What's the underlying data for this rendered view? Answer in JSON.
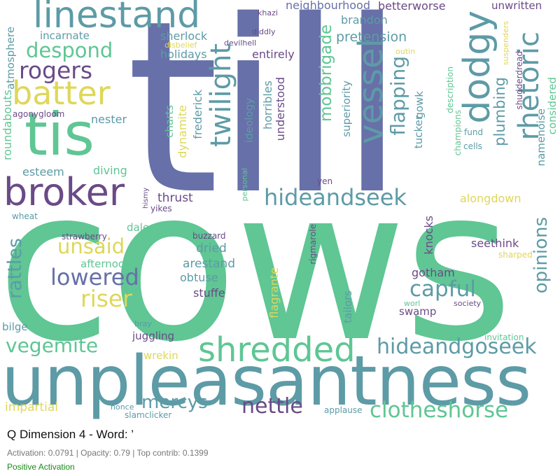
{
  "title": "Q Dimension 4 - Word: ’",
  "meta": "Activation: 0.0791 | Opacity: 0.79 | Top contrib: 0.1399",
  "polarity": "Positive Activation",
  "colors": {
    "c1": "#6770a8",
    "c2": "#5d9ba6",
    "c3": "#5fc694",
    "c4": "#ded75a",
    "c5": "#6a4a87"
  },
  "words": [
    "till",
    "cows",
    "unpleasantness",
    "tis",
    "broker",
    "linestand",
    "batter",
    "despond",
    "rogers",
    "incarnate",
    "atmosphere",
    "agonygloom",
    "roundabouts",
    "esteem",
    "rattles",
    "wheat",
    "vegemite",
    "bilge",
    "impartial",
    "unsaid",
    "lowered",
    "riser",
    "afternoon",
    "strawberry",
    "dale",
    "mercys",
    "juggling",
    "wrekin",
    "nonce",
    "slamclicker",
    "bray",
    "diving",
    "thrust",
    "hismy",
    "yikes",
    "charts",
    "dynamite",
    "nester",
    "frederick",
    "holidays",
    "sherlock",
    "disbelief",
    "devilhell",
    "diddly",
    "khazi",
    "twilight",
    "personal",
    "ideology",
    "entirely",
    "horribles",
    "understood",
    "mobbrigade",
    "neighbourhood",
    "pretension",
    "brandon",
    "superiority",
    "vessel",
    "flapping",
    "gowk",
    "tucker",
    "dodgy",
    "plumbing",
    "betterworse",
    "unwritten",
    "rhetoric",
    "description",
    "champions",
    "outin",
    "shudderdread",
    "suspenders",
    "considered",
    "namenoise",
    "fund",
    "cells",
    "yen",
    "hideandseek",
    "alongdown",
    "knocks",
    "seethink",
    "opinions",
    "capful",
    "gotham",
    "swamp",
    "worl",
    "society",
    "sharped",
    "invitation",
    "rigmarole",
    "tailors",
    "flagrante",
    "shredded",
    "hideandgoseek",
    "nettle",
    "clotheshorse",
    "applause",
    "dried",
    "arestand",
    "obtuse",
    "stuffe",
    "buzzard"
  ]
}
